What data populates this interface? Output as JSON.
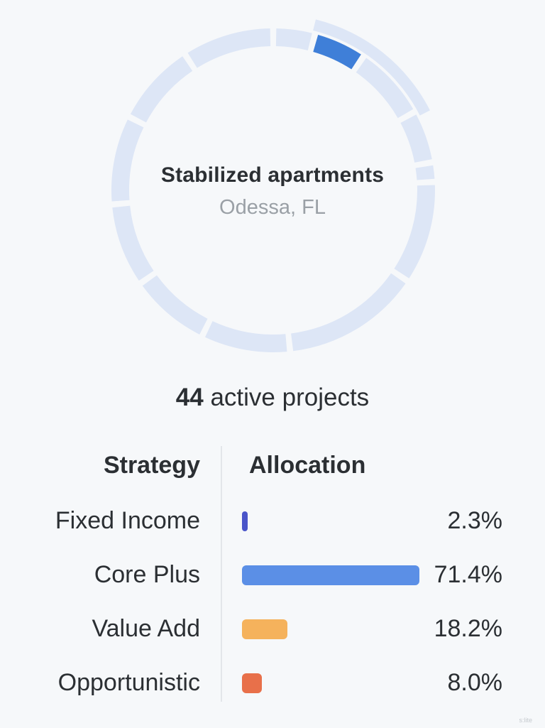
{
  "property": {
    "title": "Stabilized apartments",
    "location": "Odessa, FL"
  },
  "projects": {
    "count": "44",
    "label": "active projects"
  },
  "table": {
    "header_strategy": "Strategy",
    "header_allocation": "Allocation",
    "rows": [
      {
        "strategy": "Fixed Income",
        "allocation_label": "2.3%",
        "allocation_value": 2.3,
        "color": "#4a55c9"
      },
      {
        "strategy": "Core Plus",
        "allocation_label": "71.4%",
        "allocation_value": 71.4,
        "color": "#5b8fe6"
      },
      {
        "strategy": "Value Add",
        "allocation_label": "18.2%",
        "allocation_value": 18.2,
        "color": "#f5b25c"
      },
      {
        "strategy": "Opportunistic",
        "allocation_label": "8.0%",
        "allocation_value": 8.0,
        "color": "#e8704a"
      }
    ]
  },
  "colors": {
    "segment_default": "#dde6f6",
    "segment_selected": "#3f7fd8",
    "segment_selected_highlight": "#dde6f6"
  },
  "watermark": "s:lite"
}
